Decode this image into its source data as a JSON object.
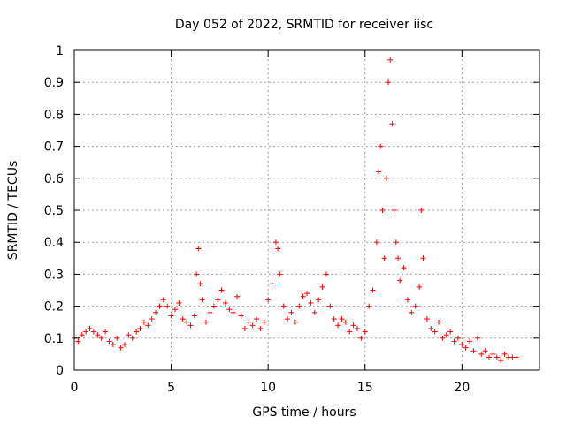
{
  "chart_data": {
    "type": "scatter",
    "title": "Day 052 of 2022, SRMTID for receiver iisc",
    "xlabel": "GPS time / hours",
    "ylabel": "SRMTID / TECUs",
    "xlim": [
      0,
      24
    ],
    "ylim": [
      0,
      1
    ],
    "xticks": [
      0,
      5,
      10,
      15,
      20
    ],
    "xtick_labels": [
      "0",
      "5",
      "10",
      "15",
      "20"
    ],
    "yticks": [
      0,
      0.1,
      0.2,
      0.3,
      0.4,
      0.5,
      0.6,
      0.7,
      0.8,
      0.9,
      1
    ],
    "ytick_labels": [
      "0",
      "0.1",
      "0.2",
      "0.3",
      "0.4",
      "0.5",
      "0.6",
      "0.7",
      "0.8",
      "0.9",
      "1"
    ],
    "grid": true,
    "marker": "+",
    "series": [
      {
        "name": "SRMTID",
        "color": "#ff0000",
        "x": [
          0.0,
          0.2,
          0.4,
          0.6,
          0.8,
          1.0,
          1.2,
          1.4,
          1.6,
          1.8,
          2.0,
          2.2,
          2.4,
          2.6,
          2.8,
          3.0,
          3.2,
          3.4,
          3.6,
          3.8,
          4.0,
          4.2,
          4.4,
          4.6,
          4.8,
          5.0,
          5.2,
          5.4,
          5.6,
          5.8,
          6.0,
          6.2,
          6.3,
          6.4,
          6.5,
          6.6,
          6.8,
          7.0,
          7.2,
          7.4,
          7.6,
          7.8,
          8.0,
          8.2,
          8.4,
          8.6,
          8.8,
          9.0,
          9.2,
          9.4,
          9.6,
          9.8,
          10.0,
          10.2,
          10.4,
          10.5,
          10.6,
          10.8,
          11.0,
          11.2,
          11.4,
          11.6,
          11.8,
          12.0,
          12.2,
          12.4,
          12.6,
          12.8,
          13.0,
          13.2,
          13.4,
          13.6,
          13.8,
          14.0,
          14.2,
          14.4,
          14.6,
          14.8,
          15.0,
          15.2,
          15.4,
          15.6,
          15.7,
          15.8,
          15.9,
          16.0,
          16.1,
          16.2,
          16.3,
          16.4,
          16.5,
          16.6,
          16.7,
          16.8,
          17.0,
          17.2,
          17.4,
          17.6,
          17.8,
          17.9,
          18.0,
          18.2,
          18.4,
          18.6,
          18.8,
          19.0,
          19.2,
          19.4,
          19.6,
          19.8,
          20.0,
          20.2,
          20.4,
          20.6,
          20.8,
          21.0,
          21.2,
          21.4,
          21.6,
          21.8,
          22.0,
          22.2,
          22.4,
          22.6,
          22.8
        ],
        "y": [
          0.1,
          0.09,
          0.11,
          0.12,
          0.13,
          0.12,
          0.11,
          0.1,
          0.12,
          0.09,
          0.08,
          0.1,
          0.07,
          0.08,
          0.11,
          0.1,
          0.12,
          0.13,
          0.15,
          0.14,
          0.16,
          0.18,
          0.2,
          0.22,
          0.2,
          0.17,
          0.19,
          0.21,
          0.16,
          0.15,
          0.14,
          0.17,
          0.3,
          0.38,
          0.27,
          0.22,
          0.15,
          0.18,
          0.2,
          0.22,
          0.25,
          0.21,
          0.19,
          0.18,
          0.23,
          0.17,
          0.13,
          0.15,
          0.14,
          0.16,
          0.13,
          0.15,
          0.22,
          0.27,
          0.4,
          0.38,
          0.3,
          0.2,
          0.16,
          0.18,
          0.15,
          0.2,
          0.23,
          0.24,
          0.21,
          0.18,
          0.22,
          0.26,
          0.3,
          0.2,
          0.16,
          0.14,
          0.16,
          0.15,
          0.12,
          0.14,
          0.13,
          0.1,
          0.12,
          0.2,
          0.25,
          0.4,
          0.62,
          0.7,
          0.5,
          0.35,
          0.6,
          0.9,
          0.97,
          0.77,
          0.5,
          0.4,
          0.35,
          0.28,
          0.32,
          0.22,
          0.18,
          0.2,
          0.26,
          0.5,
          0.35,
          0.16,
          0.13,
          0.12,
          0.15,
          0.1,
          0.11,
          0.12,
          0.09,
          0.1,
          0.08,
          0.07,
          0.09,
          0.06,
          0.1,
          0.05,
          0.06,
          0.04,
          0.05,
          0.04,
          0.03,
          0.05,
          0.04,
          0.04,
          0.04
        ]
      }
    ]
  }
}
